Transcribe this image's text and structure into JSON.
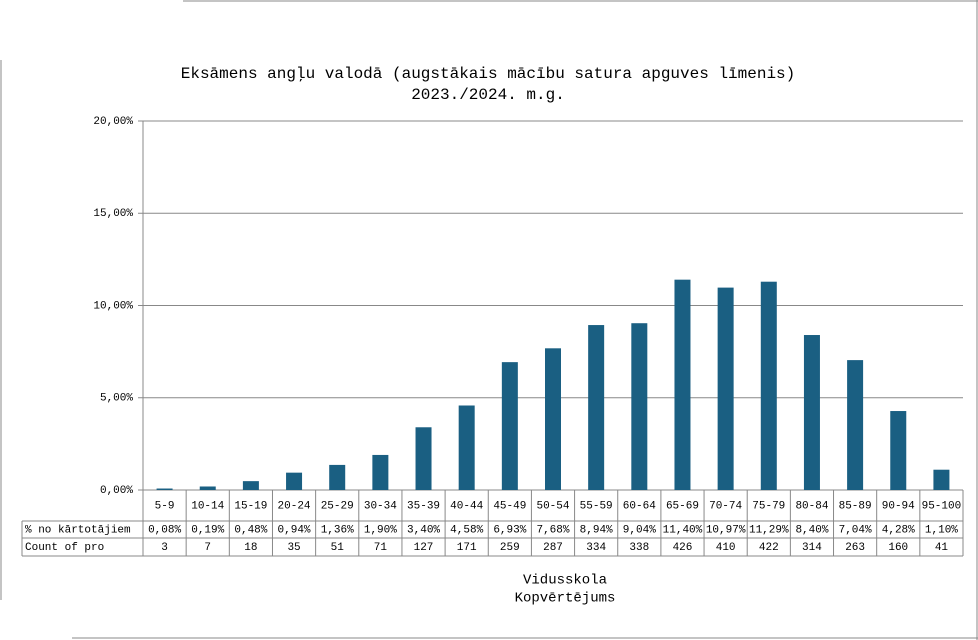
{
  "chart_data": {
    "type": "bar",
    "title": "Eksāmens angļu valodā (augstākais mācību satura apguves līmenis)",
    "subtitle": "2023./2024. m.g.",
    "categories": [
      "5-9",
      "10-14",
      "15-19",
      "20-24",
      "25-29",
      "30-34",
      "35-39",
      "40-44",
      "45-49",
      "50-54",
      "55-59",
      "60-64",
      "65-69",
      "70-74",
      "75-79",
      "80-84",
      "85-89",
      "90-94",
      "95-100"
    ],
    "series": [
      {
        "name": "% no kārtotājiem",
        "color": "#1a5f82",
        "values": [
          0.08,
          0.19,
          0.48,
          0.94,
          1.36,
          1.9,
          3.4,
          4.58,
          6.93,
          7.68,
          8.94,
          9.04,
          11.4,
          10.97,
          11.29,
          8.4,
          7.04,
          4.28,
          1.1
        ],
        "value_labels": [
          "0,08%",
          "0,19%",
          "0,48%",
          "0,94%",
          "1,36%",
          "1,90%",
          "3,40%",
          "4,58%",
          "6,93%",
          "7,68%",
          "8,94%",
          "9,04%",
          "11,40%",
          "10,97%",
          "11,29%",
          "8,40%",
          "7,04%",
          "4,28%",
          "1,10%"
        ]
      }
    ],
    "counts": {
      "name": "Count of pro",
      "values": [
        3,
        7,
        18,
        35,
        51,
        71,
        127,
        171,
        259,
        287,
        334,
        338,
        426,
        410,
        422,
        314,
        263,
        160,
        41
      ]
    },
    "ylim": [
      0,
      20
    ],
    "yticks": [
      {
        "value": 0,
        "label": "0,00%"
      },
      {
        "value": 5,
        "label": "5,00%"
      },
      {
        "value": 10,
        "label": "10,00%"
      },
      {
        "value": 15,
        "label": "15,00%"
      },
      {
        "value": 20,
        "label": "20,00%"
      }
    ],
    "grid": true,
    "x_axis_labels": [
      "Vidusskola",
      "Kopvērtējums"
    ]
  }
}
